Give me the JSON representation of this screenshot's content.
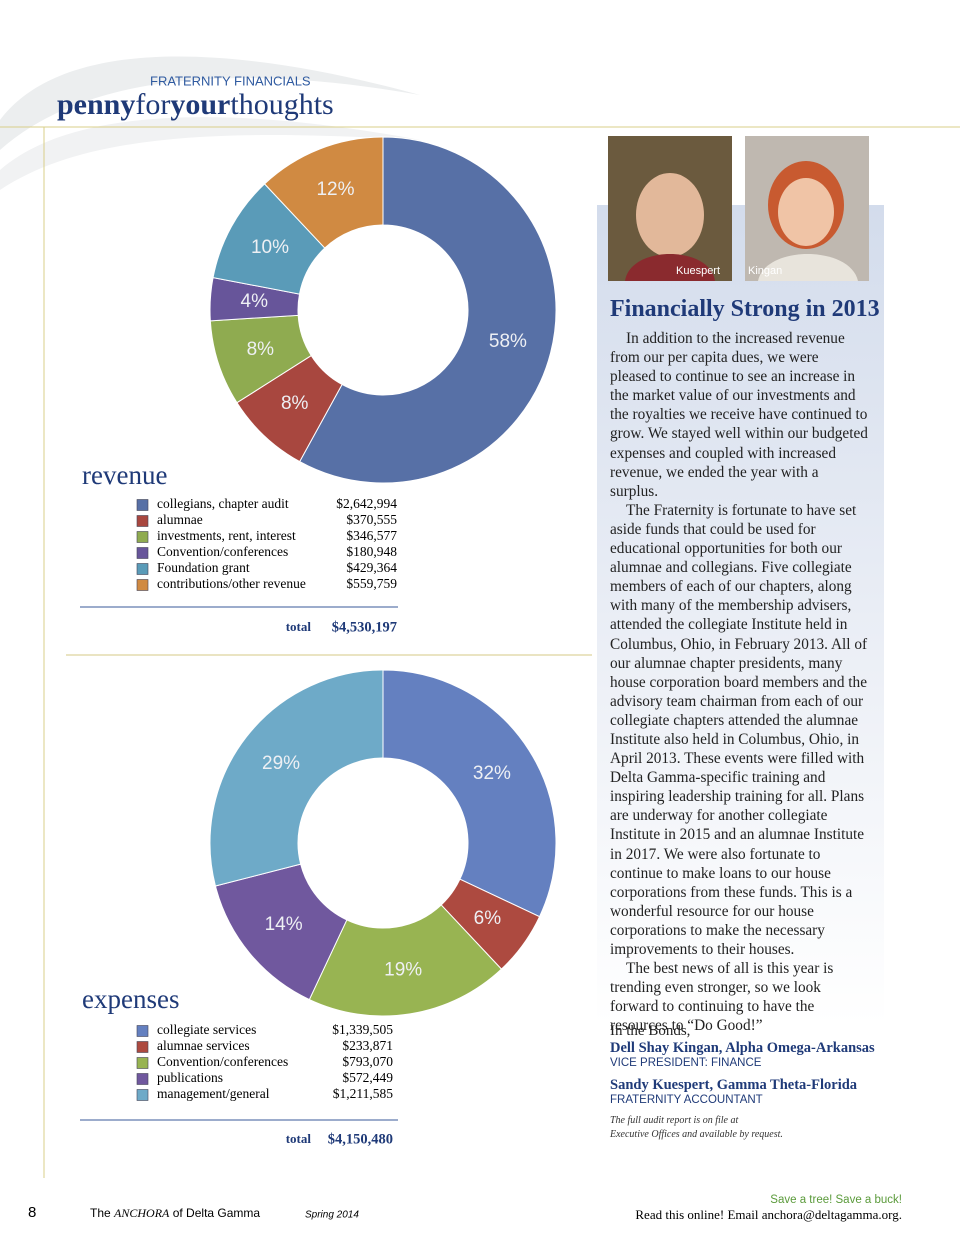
{
  "header": {
    "kicker": "FRATERNITY FINANCIALS",
    "title_parts": [
      "penny",
      "for",
      "your",
      "thoughts"
    ]
  },
  "chart_data": [
    {
      "type": "donut",
      "title": "revenue",
      "categories": [
        "collegians, chapter audit",
        "alumnae",
        "investments, rent, interest",
        "Convention/conferences",
        "Foundation grant",
        "contributions/other revenue"
      ],
      "values": [
        58,
        8,
        8,
        4,
        10,
        12
      ],
      "value_labels": [
        "58%",
        "8%",
        "8%",
        "4%",
        "10%",
        "12%"
      ],
      "colors": [
        "#5770a6",
        "#a8473f",
        "#8fab50",
        "#67559a",
        "#5a9bb8",
        "#d08a42"
      ],
      "amounts": [
        "$2,642,994",
        "$370,555",
        "$346,577",
        "$180,948",
        "$429,364",
        "$559,759"
      ],
      "total_label": "total",
      "total": "$4,530,197"
    },
    {
      "type": "donut",
      "title": "expenses",
      "categories": [
        "collegiate services",
        "alumnae services",
        "Convention/conferences",
        "publications",
        "management/general"
      ],
      "values": [
        32,
        6,
        19,
        14,
        29
      ],
      "value_labels": [
        "32%",
        "6%",
        "19%",
        "14%",
        "29%"
      ],
      "colors": [
        "#6480c0",
        "#ad4a40",
        "#98b452",
        "#70589e",
        "#6eaac8"
      ],
      "amounts": [
        "$1,339,505",
        "$233,871",
        "$793,070",
        "$572,449",
        "$1,211,585"
      ],
      "total_label": "total",
      "total": "$4,150,480"
    }
  ],
  "article": {
    "photos": [
      {
        "caption": "Kuespert"
      },
      {
        "caption": "Kingan"
      }
    ],
    "title": "Financially Strong in 2013",
    "paragraphs": [
      "In addition to the increased revenue from our per capita dues, we were pleased to continue to see an increase in the market value of our investments and the royalties we receive have continued to grow. We stayed well within our budgeted expenses and coupled with increased revenue, we ended the year with a surplus.",
      "The Fraternity is fortunate to have set aside funds that could be used for educational opportunities for both our alumnae and collegians. Five collegiate members of each of our chapters, along with many of the membership advisers, attended the collegiate Institute held in Columbus, Ohio, in February 2013. All of our alumnae chapter presidents, many house corporation board members and the advisory team chairman from each of our collegiate chapters attended the alumnae Institute also held in Columbus, Ohio, in April 2013. These events were filled with Delta Gamma-specific training and inspiring leadership training for all. Plans are underway for another collegiate Institute in 2015 and an alumnae Institute in 2017. We were also fortunate to continue to make loans to our house corporations from these funds. This is a wonderful resource for our house corporations to make the necessary improvements to their houses.",
      "The best news of all is this year is trending even stronger, so we look forward to continuing to have the resources to “Do Good!”"
    ],
    "closing": "In the Bonds,",
    "signers": [
      {
        "name": "Dell Shay Kingan, Alpha Omega-Arkansas",
        "role": "VICE PRESIDENT: FINANCE"
      },
      {
        "name": "Sandy Kuespert, Gamma Theta-Florida",
        "role": "FRATERNITY ACCOUNTANT"
      }
    ],
    "note_lines": [
      "The full audit report is on file at",
      "Executive Offices and available by request."
    ]
  },
  "footer": {
    "page": "8",
    "publication_parts": [
      "The",
      "ANCHORA",
      "of Delta Gamma"
    ],
    "issue": "Spring 2014",
    "promo": "Save a tree! Save a buck!",
    "online": "Read this online! Email anchora@deltagamma.org."
  }
}
